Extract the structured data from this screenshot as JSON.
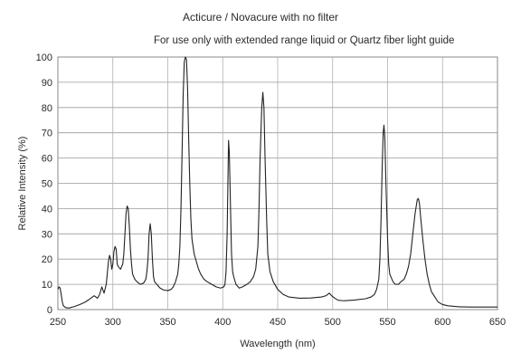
{
  "chart_data": {
    "type": "line",
    "title": "Acticure / Novacure with no filter",
    "subtitle": "For use only with extended range liquid or Quartz fiber light guide",
    "xlabel": "Wavelength (nm)",
    "ylabel": "Relative Intensity (%)",
    "xlim": [
      250,
      650
    ],
    "ylim": [
      0,
      100
    ],
    "x_ticks": [
      250,
      300,
      350,
      400,
      450,
      500,
      550,
      600,
      650
    ],
    "y_ticks": [
      0,
      10,
      20,
      30,
      40,
      50,
      60,
      70,
      80,
      90,
      100
    ],
    "grid": true,
    "series": [
      {
        "color": "#222222",
        "points": [
          [
            250,
            8
          ],
          [
            251,
            9
          ],
          [
            252,
            8.5
          ],
          [
            253,
            6
          ],
          [
            254,
            3
          ],
          [
            255,
            1.5
          ],
          [
            257,
            0.8
          ],
          [
            260,
            0.6
          ],
          [
            265,
            1.2
          ],
          [
            270,
            2
          ],
          [
            275,
            3
          ],
          [
            280,
            4.5
          ],
          [
            283,
            5.5
          ],
          [
            286,
            4.5
          ],
          [
            288,
            6
          ],
          [
            290,
            9
          ],
          [
            292,
            6.5
          ],
          [
            294,
            10
          ],
          [
            296,
            19
          ],
          [
            297,
            21.5
          ],
          [
            298,
            20
          ],
          [
            299,
            16
          ],
          [
            300,
            18
          ],
          [
            301,
            23
          ],
          [
            302,
            25
          ],
          [
            303,
            24
          ],
          [
            304,
            18
          ],
          [
            305,
            17
          ],
          [
            307,
            16
          ],
          [
            309,
            18
          ],
          [
            310,
            22
          ],
          [
            311,
            30
          ],
          [
            312,
            38
          ],
          [
            313,
            41
          ],
          [
            314,
            40
          ],
          [
            315,
            33
          ],
          [
            316,
            24
          ],
          [
            317,
            18
          ],
          [
            318,
            14
          ],
          [
            320,
            12
          ],
          [
            322,
            11
          ],
          [
            325,
            10
          ],
          [
            328,
            10.5
          ],
          [
            330,
            12
          ],
          [
            331,
            15
          ],
          [
            332,
            20
          ],
          [
            333,
            30
          ],
          [
            334,
            34
          ],
          [
            335,
            30
          ],
          [
            336,
            20
          ],
          [
            337,
            13
          ],
          [
            338,
            11
          ],
          [
            340,
            10
          ],
          [
            343,
            8.5
          ],
          [
            346,
            7.8
          ],
          [
            350,
            7.5
          ],
          [
            353,
            8
          ],
          [
            355,
            9
          ],
          [
            357,
            11
          ],
          [
            359,
            14
          ],
          [
            360,
            18
          ],
          [
            361,
            25
          ],
          [
            362,
            40
          ],
          [
            363,
            62
          ],
          [
            364,
            85
          ],
          [
            365,
            98
          ],
          [
            366,
            100
          ],
          [
            367,
            99
          ],
          [
            368,
            88
          ],
          [
            369,
            68
          ],
          [
            370,
            50
          ],
          [
            371,
            36
          ],
          [
            372,
            28
          ],
          [
            374,
            22
          ],
          [
            376,
            19
          ],
          [
            378,
            16
          ],
          [
            380,
            14
          ],
          [
            383,
            12
          ],
          [
            386,
            11
          ],
          [
            390,
            10
          ],
          [
            394,
            9
          ],
          [
            398,
            8.5
          ],
          [
            401,
            9
          ],
          [
            402,
            10
          ],
          [
            403,
            15
          ],
          [
            404,
            30
          ],
          [
            404.7,
            50
          ],
          [
            405.3,
            67
          ],
          [
            406,
            62
          ],
          [
            407,
            42
          ],
          [
            408,
            22
          ],
          [
            409,
            15
          ],
          [
            410,
            13
          ],
          [
            412,
            10
          ],
          [
            415,
            8.5
          ],
          [
            418,
            9
          ],
          [
            422,
            10
          ],
          [
            425,
            11
          ],
          [
            428,
            13
          ],
          [
            430,
            16
          ],
          [
            432,
            25
          ],
          [
            433,
            40
          ],
          [
            434,
            60
          ],
          [
            435.5,
            80
          ],
          [
            436.5,
            86
          ],
          [
            437.5,
            80
          ],
          [
            438.5,
            60
          ],
          [
            440,
            35
          ],
          [
            441,
            22
          ],
          [
            443,
            15
          ],
          [
            446,
            11
          ],
          [
            450,
            8
          ],
          [
            455,
            6
          ],
          [
            460,
            5
          ],
          [
            470,
            4.5
          ],
          [
            480,
            4.6
          ],
          [
            490,
            5
          ],
          [
            494,
            5.5
          ],
          [
            497,
            6.5
          ],
          [
            499,
            5.5
          ],
          [
            502,
            4.5
          ],
          [
            505,
            3.7
          ],
          [
            510,
            3.5
          ],
          [
            520,
            3.8
          ],
          [
            530,
            4.3
          ],
          [
            535,
            5
          ],
          [
            538,
            6
          ],
          [
            540,
            8
          ],
          [
            542,
            12
          ],
          [
            543,
            20
          ],
          [
            544,
            35
          ],
          [
            545,
            55
          ],
          [
            546,
            70
          ],
          [
            546.7,
            73
          ],
          [
            547.5,
            68
          ],
          [
            548.5,
            50
          ],
          [
            550,
            28
          ],
          [
            551,
            18
          ],
          [
            552,
            14
          ],
          [
            555,
            11
          ],
          [
            557,
            10
          ],
          [
            560,
            10
          ],
          [
            562,
            11
          ],
          [
            565,
            12
          ],
          [
            567,
            14
          ],
          [
            569,
            17
          ],
          [
            571,
            22
          ],
          [
            573,
            30
          ],
          [
            575,
            38
          ],
          [
            577,
            43.5
          ],
          [
            578,
            44
          ],
          [
            579,
            42
          ],
          [
            580,
            37
          ],
          [
            582,
            28
          ],
          [
            584,
            20
          ],
          [
            586,
            14
          ],
          [
            588,
            10
          ],
          [
            590,
            7
          ],
          [
            593,
            5
          ],
          [
            596,
            3
          ],
          [
            600,
            2
          ],
          [
            605,
            1.5
          ],
          [
            615,
            1.1
          ],
          [
            625,
            1
          ],
          [
            640,
            1
          ],
          [
            650,
            1
          ]
        ]
      }
    ]
  }
}
